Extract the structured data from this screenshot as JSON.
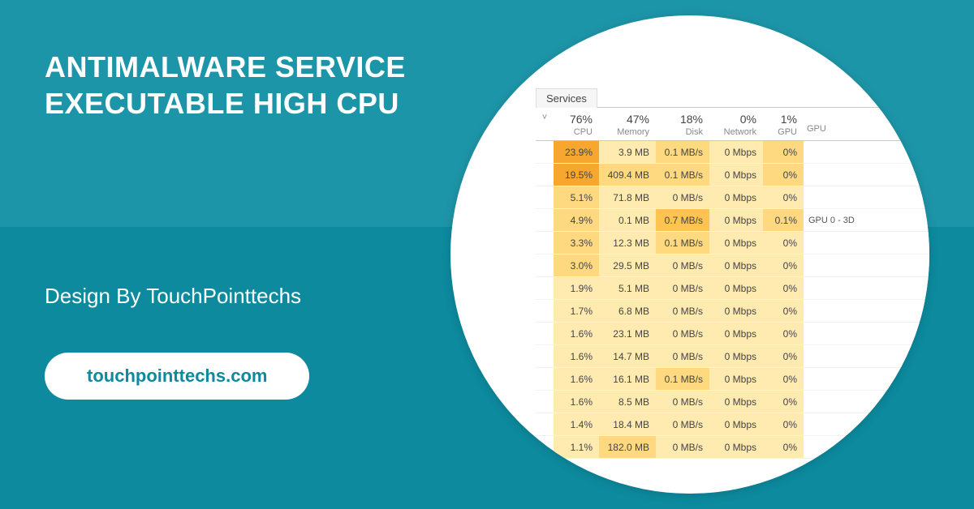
{
  "colors": {
    "bg_top": "#1d95a8",
    "bg_bottom": "#0d8a9e",
    "white": "#ffffff",
    "text_dark": "#444444",
    "text_muted": "#888888",
    "heat_scale": [
      "#fff8dc",
      "#ffebb0",
      "#ffd980",
      "#ffc450",
      "#f7a72e"
    ]
  },
  "headline_line1": "ANTIMALWARE SERVICE",
  "headline_line2": "EXECUTABLE HIGH CPU",
  "subline": "Design By TouchPointtechs",
  "pill": "touchpointtechs.com",
  "taskmgr": {
    "tab_label": "Services",
    "header": {
      "chevron": "˅",
      "columns": [
        {
          "percent": "76%",
          "label": "CPU"
        },
        {
          "percent": "47%",
          "label": "Memory"
        },
        {
          "percent": "18%",
          "label": "Disk"
        },
        {
          "percent": "0%",
          "label": "Network"
        },
        {
          "percent": "1%",
          "label": "GPU"
        }
      ],
      "gpu_col2_label": "GPU"
    },
    "rows": [
      {
        "cpu": "23.9%",
        "cpu_h": 4,
        "mem": "3.9 MB",
        "mem_h": 1,
        "disk": "0.1 MB/s",
        "disk_h": 2,
        "net": "0 Mbps",
        "net_h": 1,
        "gpu": "0%",
        "gpu_h": 2,
        "extra": ""
      },
      {
        "cpu": "19.5%",
        "cpu_h": 4,
        "mem": "409.4 MB",
        "mem_h": 2,
        "disk": "0.1 MB/s",
        "disk_h": 2,
        "net": "0 Mbps",
        "net_h": 1,
        "gpu": "0%",
        "gpu_h": 2,
        "extra": ""
      },
      {
        "cpu": "5.1%",
        "cpu_h": 2,
        "mem": "71.8 MB",
        "mem_h": 1,
        "disk": "0 MB/s",
        "disk_h": 1,
        "net": "0 Mbps",
        "net_h": 1,
        "gpu": "0%",
        "gpu_h": 1,
        "extra": ""
      },
      {
        "cpu": "4.9%",
        "cpu_h": 2,
        "mem": "0.1 MB",
        "mem_h": 1,
        "disk": "0.7 MB/s",
        "disk_h": 3,
        "net": "0 Mbps",
        "net_h": 1,
        "gpu": "0.1%",
        "gpu_h": 2,
        "extra": "GPU 0 - 3D"
      },
      {
        "cpu": "3.3%",
        "cpu_h": 2,
        "mem": "12.3 MB",
        "mem_h": 1,
        "disk": "0.1 MB/s",
        "disk_h": 2,
        "net": "0 Mbps",
        "net_h": 1,
        "gpu": "0%",
        "gpu_h": 1,
        "extra": ""
      },
      {
        "cpu": "3.0%",
        "cpu_h": 2,
        "mem": "29.5 MB",
        "mem_h": 1,
        "disk": "0 MB/s",
        "disk_h": 1,
        "net": "0 Mbps",
        "net_h": 1,
        "gpu": "0%",
        "gpu_h": 1,
        "extra": ""
      },
      {
        "cpu": "1.9%",
        "cpu_h": 1,
        "mem": "5.1 MB",
        "mem_h": 1,
        "disk": "0 MB/s",
        "disk_h": 1,
        "net": "0 Mbps",
        "net_h": 1,
        "gpu": "0%",
        "gpu_h": 1,
        "extra": ""
      },
      {
        "cpu": "1.7%",
        "cpu_h": 1,
        "mem": "6.8 MB",
        "mem_h": 1,
        "disk": "0 MB/s",
        "disk_h": 1,
        "net": "0 Mbps",
        "net_h": 1,
        "gpu": "0%",
        "gpu_h": 1,
        "extra": ""
      },
      {
        "cpu": "1.6%",
        "cpu_h": 1,
        "mem": "23.1 MB",
        "mem_h": 1,
        "disk": "0 MB/s",
        "disk_h": 1,
        "net": "0 Mbps",
        "net_h": 1,
        "gpu": "0%",
        "gpu_h": 1,
        "extra": ""
      },
      {
        "cpu": "1.6%",
        "cpu_h": 1,
        "mem": "14.7 MB",
        "mem_h": 1,
        "disk": "0 MB/s",
        "disk_h": 1,
        "net": "0 Mbps",
        "net_h": 1,
        "gpu": "0%",
        "gpu_h": 1,
        "extra": ""
      },
      {
        "cpu": "1.6%",
        "cpu_h": 1,
        "mem": "16.1 MB",
        "mem_h": 1,
        "disk": "0.1 MB/s",
        "disk_h": 2,
        "net": "0 Mbps",
        "net_h": 1,
        "gpu": "0%",
        "gpu_h": 1,
        "extra": ""
      },
      {
        "cpu": "1.6%",
        "cpu_h": 1,
        "mem": "8.5 MB",
        "mem_h": 1,
        "disk": "0 MB/s",
        "disk_h": 1,
        "net": "0 Mbps",
        "net_h": 1,
        "gpu": "0%",
        "gpu_h": 1,
        "extra": ""
      },
      {
        "cpu": "1.4%",
        "cpu_h": 1,
        "mem": "18.4 MB",
        "mem_h": 1,
        "disk": "0 MB/s",
        "disk_h": 1,
        "net": "0 Mbps",
        "net_h": 1,
        "gpu": "0%",
        "gpu_h": 1,
        "extra": ""
      },
      {
        "cpu": "1.1%",
        "cpu_h": 1,
        "mem": "182.0 MB",
        "mem_h": 2,
        "disk": "0 MB/s",
        "disk_h": 1,
        "net": "0 Mbps",
        "net_h": 1,
        "gpu": "0%",
        "gpu_h": 1,
        "extra": ""
      }
    ]
  }
}
